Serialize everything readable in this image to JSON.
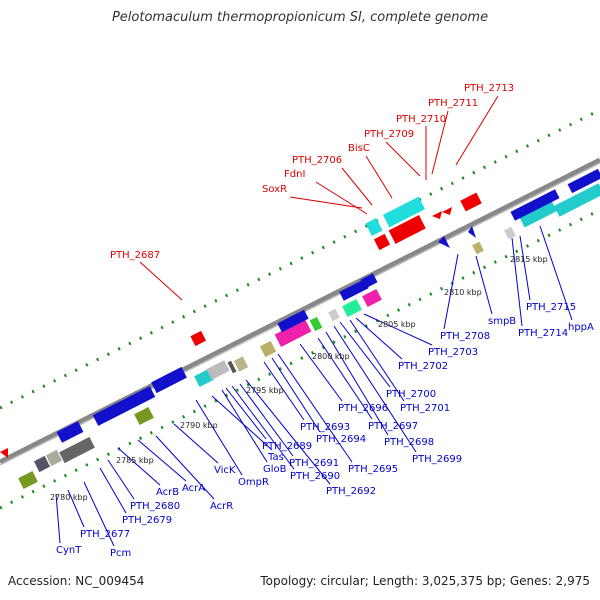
{
  "title": "Pelotomaculum thermopropionicum SI, complete genome",
  "accession": "Accession: NC_009454",
  "topology": "Topology: circular; Length: 3,025,375 bp; Genes: 2,975",
  "kbp_ticks": [
    "2780 kbp",
    "2785 kbp",
    "2790 kbp",
    "2795 kbp",
    "2800 kbp",
    "2805 kbp",
    "2810 kbp",
    "2815 kbp"
  ],
  "upper_genes": [
    "PTH_2687",
    "SoxR",
    "FdnI",
    "PTH_2706",
    "BisC",
    "PTH_2709",
    "PTH_2710",
    "PTH_2711",
    "PTH_2713"
  ],
  "lower_genes": [
    "CynT",
    "PTH_2677",
    "Pcm",
    "PTH_2679",
    "PTH_2680",
    "AcrB",
    "AcrA",
    "AcrR",
    "VicK",
    "OmpR",
    "Tas",
    "GloB",
    "PTH_2689",
    "PTH_2690",
    "PTH_2691",
    "PTH_2692",
    "PTH_2693",
    "PTH_2694",
    "PTH_2695",
    "PTH_2696",
    "PTH_2697",
    "PTH_2698",
    "PTH_2699",
    "PTH_2700",
    "PTH_2701",
    "PTH_2702",
    "PTH_2703",
    "PTH_2708",
    "smpB",
    "PTH_2714",
    "PTH_2715",
    "hppA"
  ],
  "colors": {
    "upper_label": "#dd0000",
    "lower_label": "#0000cc",
    "backbone": "#888888",
    "tick": "#1a8a1a"
  }
}
